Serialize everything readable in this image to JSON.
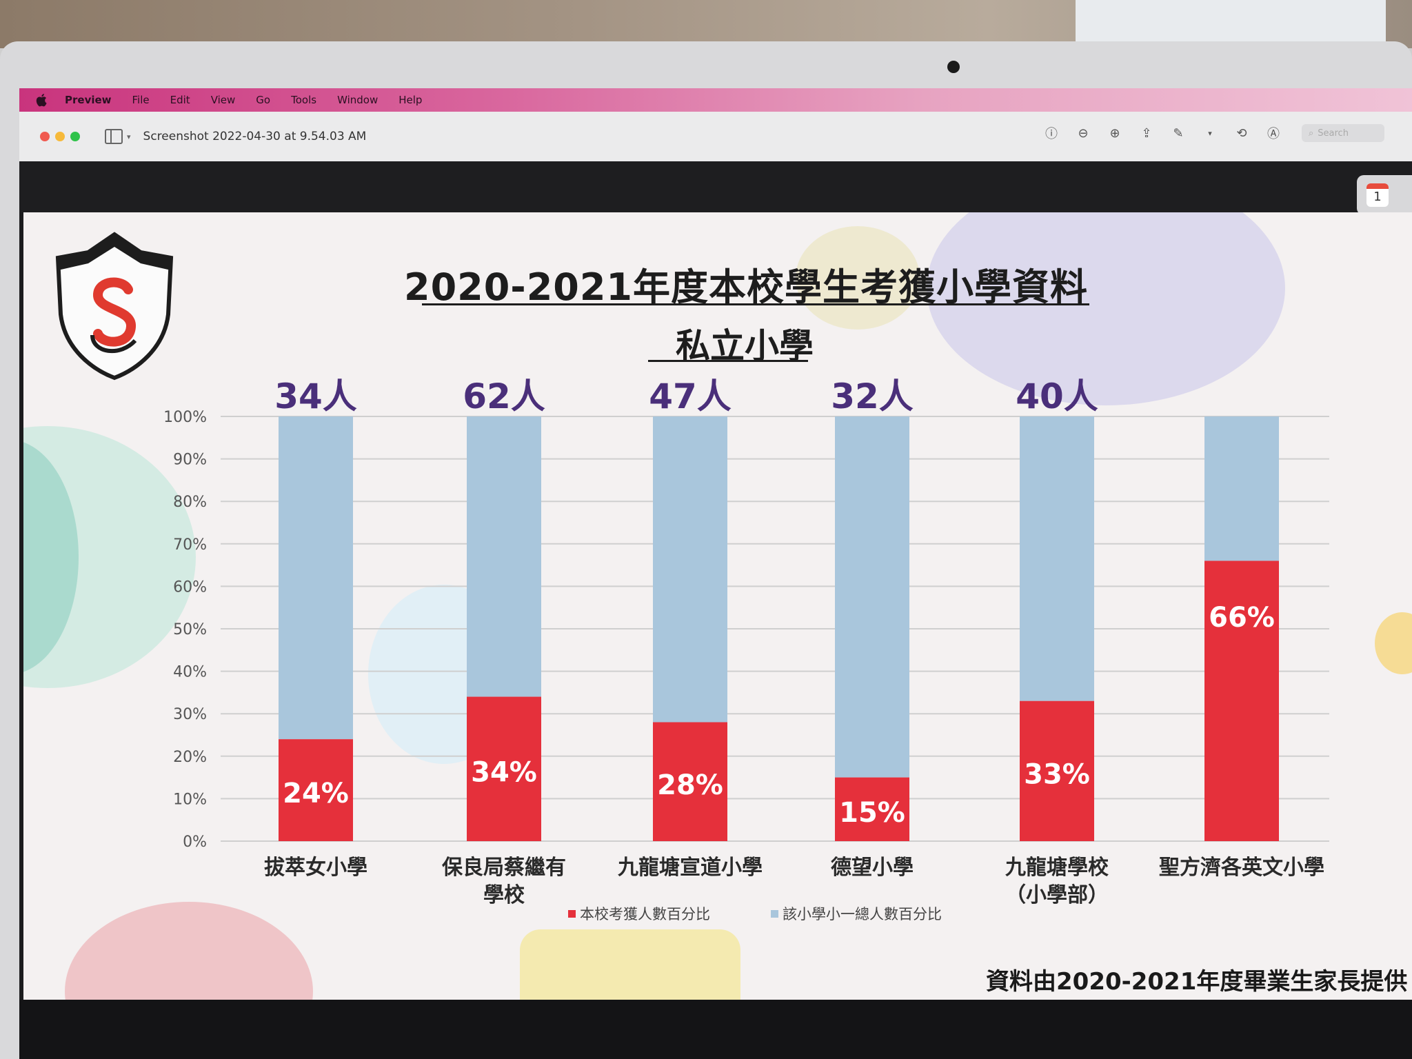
{
  "menubar": {
    "app": "Preview",
    "items": [
      "File",
      "Edit",
      "View",
      "Go",
      "Tools",
      "Window",
      "Help"
    ]
  },
  "window": {
    "title": "Screenshot 2022-04-30 at 9.54.03 AM",
    "search_placeholder": "Search",
    "notification_day": "1"
  },
  "slide": {
    "source_note": "資料由2020-2021年度畢業生家長提供"
  },
  "chart_data": {
    "type": "bar",
    "stacked": true,
    "title": "2020-2021年度本校學生考獲小學資料",
    "subtitle": "私立小學",
    "categories": [
      "拔萃女小學",
      "保良局蔡繼有學校",
      "九龍塘宣道小學",
      "德望小學",
      "九龍塘學校（小學部）",
      "聖方濟各英文小學"
    ],
    "category_lines": [
      [
        "拔萃女小學"
      ],
      [
        "保良局蔡繼有",
        "學校"
      ],
      [
        "九龍塘宣道小學"
      ],
      [
        "德望小學"
      ],
      [
        "九龍塘學校",
        "（小學部）"
      ],
      [
        "聖方濟各英文小學"
      ]
    ],
    "counts": [
      "34人",
      "62人",
      "47人",
      "32人",
      "40人",
      ""
    ],
    "series": [
      {
        "name": "本校考獲人數百分比",
        "values": [
          24,
          34,
          28,
          15,
          33,
          66
        ],
        "labels": [
          "24%",
          "34%",
          "28%",
          "15%",
          "33%",
          "66%"
        ],
        "color": "#e5303b"
      },
      {
        "name": "該小學小一總人數百分比",
        "values": [
          76,
          66,
          72,
          85,
          67,
          34
        ],
        "color": "#a9c6dc"
      }
    ],
    "ylim": [
      0,
      100
    ],
    "yticks": [
      "0%",
      "10%",
      "20%",
      "30%",
      "40%",
      "50%",
      "60%",
      "70%",
      "80%",
      "90%",
      "100%"
    ],
    "grid": true,
    "legend_position": "bottom"
  }
}
